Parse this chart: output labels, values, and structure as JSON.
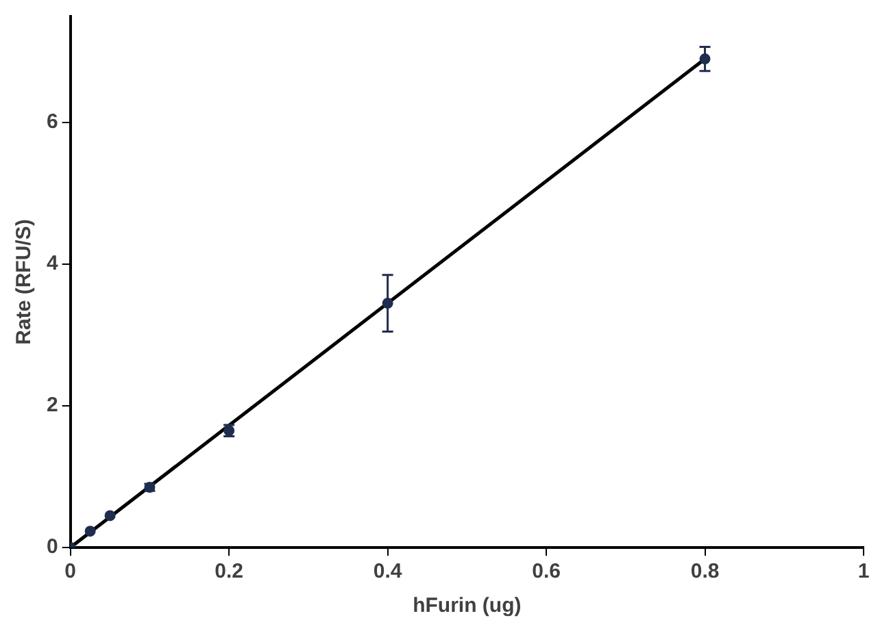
{
  "chart_data": {
    "type": "scatter",
    "xlabel": "hFurin (ug)",
    "ylabel": "Rate (RFU/S)",
    "xlim": [
      0,
      1
    ],
    "xticks": [
      0,
      0.2,
      0.4,
      0.6,
      0.8,
      1
    ],
    "ylim": [
      0,
      7.5
    ],
    "yticks": [
      0,
      2,
      4,
      6
    ],
    "grid": false,
    "legend": false,
    "series": [
      {
        "color": "#1f2d4f",
        "marker": "circle",
        "x": [
          0,
          0.025,
          0.05,
          0.1,
          0.2,
          0.4,
          0.8
        ],
        "values": [
          0,
          0.23,
          0.45,
          0.85,
          1.65,
          3.45,
          6.9
        ],
        "errors": [
          null,
          null,
          null,
          0.05,
          0.08,
          0.4,
          0.17
        ]
      },
      {
        "type": "line",
        "marker": "none",
        "color": "#000000",
        "x": [
          0,
          0.8
        ],
        "values": [
          0,
          6.9
        ]
      }
    ]
  }
}
